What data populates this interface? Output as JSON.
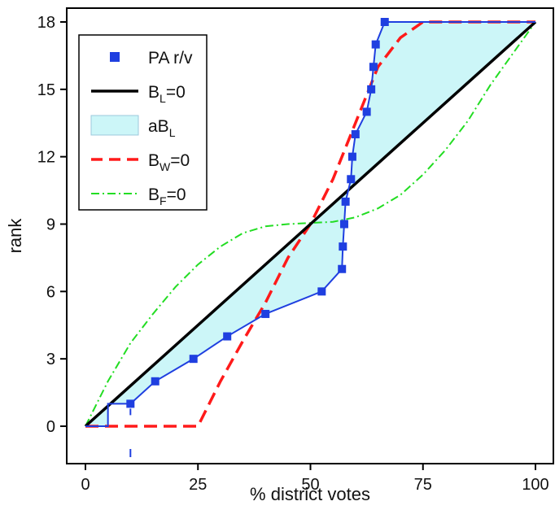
{
  "chart_data": {
    "type": "line",
    "xlabel": "% district votes",
    "ylabel": "rank",
    "xlim": [
      0,
      100
    ],
    "ylim": [
      -0.5,
      18
    ],
    "x_ticks": [
      0,
      25,
      50,
      75,
      100
    ],
    "y_ticks": [
      0,
      3,
      6,
      9,
      12,
      15,
      18
    ],
    "grid": false,
    "legend_position": "top-left",
    "colors": {
      "pa": "#1f3fe0",
      "bl": "#000000",
      "area_fill": "#ccf6f8",
      "bw": "#ff1a1a",
      "bf": "#22dd22"
    },
    "legend": [
      {
        "id": "pa",
        "main": "PA r/v",
        "sub": "",
        "rest": ""
      },
      {
        "id": "bl",
        "main": "B",
        "sub": "L",
        "rest": "=0"
      },
      {
        "id": "area",
        "main": "aB",
        "sub": "L",
        "rest": ""
      },
      {
        "id": "bw",
        "main": "B",
        "sub": "W",
        "rest": "=0"
      },
      {
        "id": "bf",
        "main": "B",
        "sub": "F",
        "rest": "=0"
      }
    ],
    "series": [
      {
        "id": "pa",
        "name": "PA r/v",
        "style": "step-markers",
        "points": [
          [
            10,
            1
          ],
          [
            15.5,
            2
          ],
          [
            24,
            3
          ],
          [
            31.5,
            4
          ],
          [
            40,
            5
          ],
          [
            52.5,
            6
          ],
          [
            57,
            7
          ],
          [
            57.2,
            8
          ],
          [
            57.5,
            9
          ],
          [
            57.8,
            10
          ],
          [
            59,
            11
          ],
          [
            59.3,
            12
          ],
          [
            60,
            13
          ],
          [
            62.5,
            14
          ],
          [
            63.5,
            15
          ],
          [
            64,
            16
          ],
          [
            64.5,
            17
          ],
          [
            66.5,
            18
          ]
        ]
      },
      {
        "id": "bl",
        "name": "B_L=0",
        "style": "solid",
        "points": [
          [
            0,
            0
          ],
          [
            100,
            18
          ]
        ]
      },
      {
        "id": "bw",
        "name": "B_W=0",
        "style": "dashed",
        "points": [
          [
            0,
            0
          ],
          [
            25,
            0
          ],
          [
            30,
            2
          ],
          [
            35,
            3.8
          ],
          [
            40,
            5.5
          ],
          [
            45,
            7.5
          ],
          [
            50,
            9
          ],
          [
            55,
            11
          ],
          [
            60,
            13.5
          ],
          [
            65,
            16
          ],
          [
            70,
            17.3
          ],
          [
            75,
            18
          ],
          [
            100,
            18
          ]
        ]
      },
      {
        "id": "bf",
        "name": "B_F=0",
        "style": "dashdot",
        "points": [
          [
            0,
            0
          ],
          [
            5,
            2
          ],
          [
            10,
            3.7
          ],
          [
            15,
            5
          ],
          [
            20,
            6.2
          ],
          [
            25,
            7.2
          ],
          [
            30,
            8
          ],
          [
            35,
            8.6
          ],
          [
            40,
            8.9
          ],
          [
            45,
            9
          ],
          [
            50,
            9.05
          ],
          [
            55,
            9.1
          ],
          [
            60,
            9.3
          ],
          [
            65,
            9.7
          ],
          [
            70,
            10.3
          ],
          [
            75,
            11.2
          ],
          [
            80,
            12.3
          ],
          [
            85,
            13.6
          ],
          [
            90,
            15.2
          ],
          [
            95,
            16.6
          ],
          [
            100,
            18
          ]
        ]
      }
    ]
  }
}
